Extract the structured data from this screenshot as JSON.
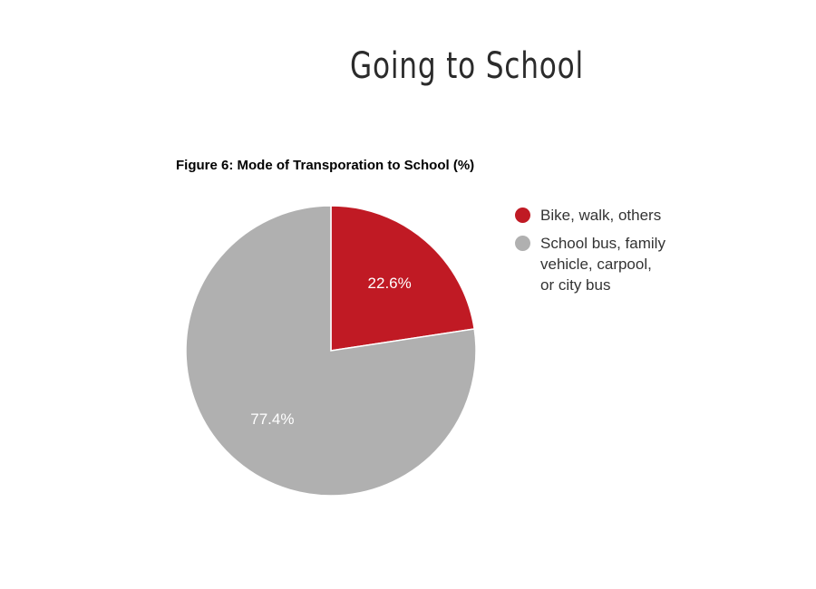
{
  "slide": {
    "title": "Going to School"
  },
  "chart_data": {
    "type": "pie",
    "title": "Figure 6: Mode of Transporation to School (%)",
    "slices": [
      {
        "label": "Bike, walk, others",
        "value": 22.6,
        "display": "22.6%",
        "color": "#c01a24"
      },
      {
        "label": "School bus, family vehicle, carpool, or city bus",
        "value": 77.4,
        "display": "77.4%",
        "color": "#b0b0b0"
      }
    ],
    "legend_position": "right"
  }
}
